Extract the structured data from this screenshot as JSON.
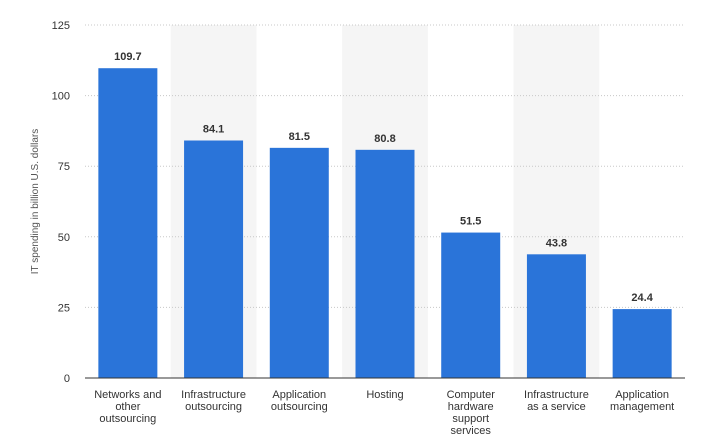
{
  "chart_data": {
    "type": "bar",
    "title": "",
    "xlabel": "",
    "ylabel": "IT spending in billion U.S. dollars",
    "ylim": [
      0,
      125
    ],
    "yticks": [
      0,
      25,
      50,
      75,
      100,
      125
    ],
    "grid": true,
    "legend": "none",
    "categories": [
      [
        "Networks and",
        "other",
        "outsourcing"
      ],
      [
        "Infrastructure",
        "outsourcing"
      ],
      [
        "Application",
        "outsourcing"
      ],
      [
        "Hosting"
      ],
      [
        "Computer",
        "hardware",
        "support",
        "services"
      ],
      [
        "Infrastructure",
        "as a service"
      ],
      [
        "Application",
        "management"
      ]
    ],
    "values": [
      109.7,
      84.1,
      81.5,
      80.8,
      51.5,
      43.8,
      24.4
    ],
    "value_labels": [
      "109.7",
      "84.1",
      "81.5",
      "80.8",
      "51.5",
      "43.8",
      "24.4"
    ],
    "colors": {
      "bar": "#2a74d9",
      "band": "#f5f5f5",
      "grid": "#c8c8c8",
      "axis": "#333333"
    }
  }
}
